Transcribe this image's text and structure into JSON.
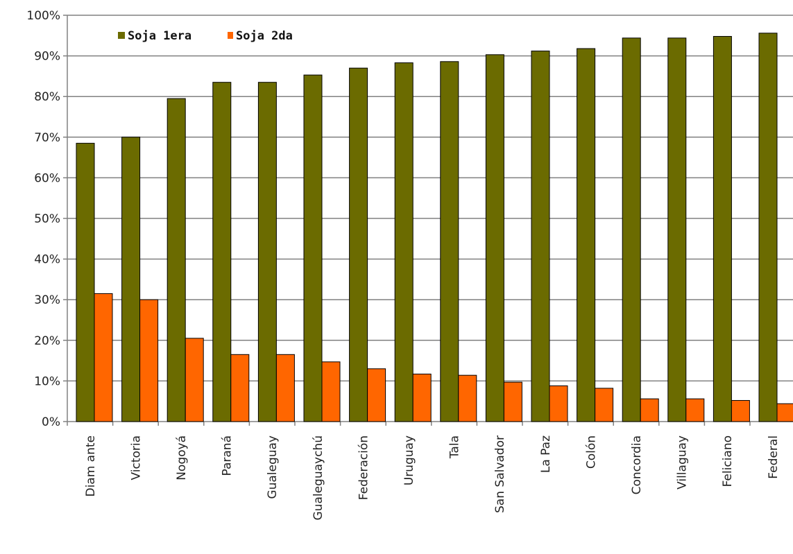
{
  "chart_data": {
    "type": "bar",
    "categories": [
      "Diam ante",
      "Victoria",
      "Nogoyá",
      "Paraná",
      "Gualeguay",
      "Gualeguaychú",
      "Federación",
      "Uruguay",
      "Tala",
      "San Salvador",
      "La Paz",
      "Colón",
      "Concordia",
      "Villaguay",
      "Feliciano",
      "Federal"
    ],
    "series": [
      {
        "name": "Soja 1era",
        "color": "#6b6b00",
        "values": [
          68.5,
          70,
          79.5,
          83.5,
          83.5,
          85.3,
          87,
          88.3,
          88.6,
          90.3,
          91.2,
          91.8,
          94.4,
          94.4,
          94.8,
          95.6
        ]
      },
      {
        "name": "Soja 2da",
        "color": "#ff6600",
        "values": [
          31.5,
          30,
          20.5,
          16.5,
          16.5,
          14.7,
          13,
          11.7,
          11.4,
          9.7,
          8.8,
          8.2,
          5.6,
          5.6,
          5.2,
          4.4
        ]
      }
    ],
    "y_ticks": [
      "0%",
      "10%",
      "20%",
      "30%",
      "40%",
      "50%",
      "60%",
      "70%",
      "80%",
      "90%",
      "100%"
    ],
    "ylim": [
      0,
      100
    ],
    "grid": true,
    "legend_position": "top-left"
  }
}
